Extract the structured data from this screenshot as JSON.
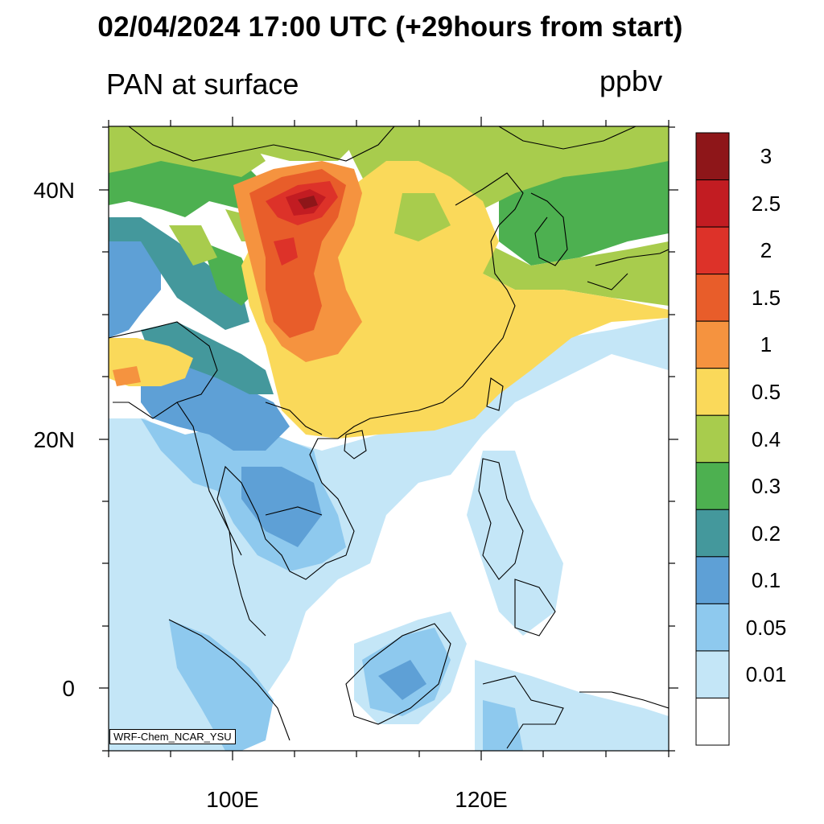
{
  "header": {
    "title": "02/04/2024 17:00 UTC (+29hours from start)",
    "variable": "PAN at surface",
    "units": "ppbv"
  },
  "map": {
    "lat_labels": [
      "40N",
      "20N",
      "0"
    ],
    "lon_labels": [
      "100E",
      "120E"
    ],
    "lat_range": [
      -5,
      45
    ],
    "lon_range": [
      90,
      135
    ]
  },
  "colorbar": {
    "labels": [
      "3",
      "2.5",
      "2",
      "1.5",
      "1",
      "0.5",
      "0.4",
      "0.3",
      "0.2",
      "0.1",
      "0.05",
      "0.01"
    ],
    "colors_top_to_bottom": [
      "#8e1619",
      "#c21c22",
      "#dd3229",
      "#e85d2a",
      "#f5933f",
      "#fad95a",
      "#a8cc4d",
      "#4db050",
      "#44989c",
      "#5ea0d6",
      "#8ec9ee",
      "#c4e6f7",
      "#ffffff"
    ]
  },
  "credit": "WRF-Chem_NCAR_YSU"
}
